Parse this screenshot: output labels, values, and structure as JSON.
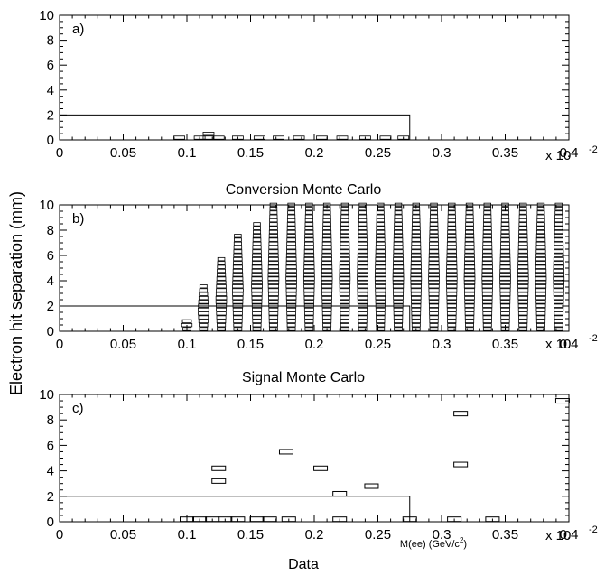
{
  "figure": {
    "ylabel": "Electron hit separation (mm)",
    "x_multiplier": "x 10",
    "x_multiplier_exp": "-2",
    "xlabel_panel_c": "M(ee) (GeV/c",
    "xlabel_panel_c_sup": "2",
    "xlabel_panel_c_end": ")"
  },
  "chart_data": [
    {
      "type": "scatter",
      "style": "box",
      "panel_label": "a)",
      "caption": "Conversion Monte Carlo",
      "xlim": [
        0,
        0.4
      ],
      "ylim": [
        0,
        10
      ],
      "x_ticks": [
        0,
        0.05,
        0.1,
        0.15,
        0.2,
        0.25,
        0.3,
        0.35,
        0.4
      ],
      "x_tick_labels": [
        "0",
        "0.05",
        "0.1",
        "0.15",
        "0.2",
        "0.25",
        "0.3",
        "0.35",
        "0.4"
      ],
      "y_ticks": [
        0,
        2,
        4,
        6,
        8,
        10
      ],
      "y_tick_labels": [
        "0",
        "2",
        "4",
        "6",
        "8",
        "10"
      ],
      "cut_box": {
        "x_max": 0.275,
        "y_max": 2
      },
      "columns": [
        {
          "x": 0.094,
          "y_max": 0.3
        },
        {
          "x": 0.11,
          "y_max": 0.4
        },
        {
          "x": 0.117,
          "y_max": 0.5
        },
        {
          "x": 0.125,
          "y_max": 0.3
        },
        {
          "x": 0.14,
          "y_max": 0.3
        },
        {
          "x": 0.157,
          "y_max": 0.3
        },
        {
          "x": 0.172,
          "y_max": 0.3
        },
        {
          "x": 0.188,
          "y_max": 0.3
        },
        {
          "x": 0.206,
          "y_max": 0.3
        },
        {
          "x": 0.222,
          "y_max": 0.3
        },
        {
          "x": 0.24,
          "y_max": 0.3
        },
        {
          "x": 0.256,
          "y_max": 0.3
        },
        {
          "x": 0.27,
          "y_max": 0.3
        }
      ]
    },
    {
      "type": "scatter",
      "style": "box",
      "panel_label": "b)",
      "caption": "Signal Monte Carlo",
      "xlim": [
        0,
        0.4
      ],
      "ylim": [
        0,
        10
      ],
      "x_ticks": [
        0,
        0.05,
        0.1,
        0.15,
        0.2,
        0.25,
        0.3,
        0.35,
        0.4
      ],
      "x_tick_labels": [
        "0",
        "0.05",
        "0.1",
        "0.15",
        "0.2",
        "0.25",
        "0.3",
        "0.35",
        "0.4"
      ],
      "y_ticks": [
        0,
        2,
        4,
        6,
        8,
        10
      ],
      "y_tick_labels": [
        "0",
        "2",
        "4",
        "6",
        "8",
        "10"
      ],
      "cut_box": {
        "x_max": 0.275,
        "y_max": 2
      },
      "columns": [
        {
          "x": 0.1,
          "y_max": 0.8
        },
        {
          "x": 0.113,
          "y_max": 3.8
        },
        {
          "x": 0.127,
          "y_max": 5.8
        },
        {
          "x": 0.14,
          "y_max": 7.6
        },
        {
          "x": 0.155,
          "y_max": 8.6
        },
        {
          "x": 0.168,
          "y_max": 10
        },
        {
          "x": 0.182,
          "y_max": 10
        },
        {
          "x": 0.196,
          "y_max": 10
        },
        {
          "x": 0.21,
          "y_max": 10
        },
        {
          "x": 0.224,
          "y_max": 10
        },
        {
          "x": 0.238,
          "y_max": 10
        },
        {
          "x": 0.252,
          "y_max": 10
        },
        {
          "x": 0.266,
          "y_max": 10
        },
        {
          "x": 0.28,
          "y_max": 10
        },
        {
          "x": 0.294,
          "y_max": 10
        },
        {
          "x": 0.308,
          "y_max": 10
        },
        {
          "x": 0.322,
          "y_max": 10
        },
        {
          "x": 0.336,
          "y_max": 10
        },
        {
          "x": 0.35,
          "y_max": 10
        },
        {
          "x": 0.364,
          "y_max": 10
        },
        {
          "x": 0.378,
          "y_max": 10
        },
        {
          "x": 0.392,
          "y_max": 10
        }
      ]
    },
    {
      "type": "scatter",
      "style": "box",
      "panel_label": "c)",
      "caption": "Data",
      "xlim": [
        0,
        0.4
      ],
      "ylim": [
        0,
        10
      ],
      "x_ticks": [
        0,
        0.05,
        0.1,
        0.15,
        0.2,
        0.25,
        0.3,
        0.35,
        0.4
      ],
      "x_tick_labels": [
        "0",
        "0.05",
        "0.1",
        "0.15",
        "0.2",
        "0.25",
        "0.3",
        "0.35",
        "0.4"
      ],
      "y_ticks": [
        0,
        2,
        4,
        6,
        8,
        10
      ],
      "y_tick_labels": [
        "0",
        "2",
        "4",
        "6",
        "8",
        "10"
      ],
      "cut_box": {
        "x_max": 0.275,
        "y_max": 2
      },
      "points": [
        {
          "x": 0.1,
          "y": 0.2
        },
        {
          "x": 0.11,
          "y": 0.2
        },
        {
          "x": 0.12,
          "y": 0.2
        },
        {
          "x": 0.13,
          "y": 0.2
        },
        {
          "x": 0.14,
          "y": 0.2
        },
        {
          "x": 0.155,
          "y": 0.2
        },
        {
          "x": 0.165,
          "y": 0.2
        },
        {
          "x": 0.18,
          "y": 0.2
        },
        {
          "x": 0.22,
          "y": 0.2
        },
        {
          "x": 0.275,
          "y": 0.2
        },
        {
          "x": 0.31,
          "y": 0.2
        },
        {
          "x": 0.34,
          "y": 0.2
        },
        {
          "x": 0.125,
          "y": 4.2
        },
        {
          "x": 0.125,
          "y": 3.2
        },
        {
          "x": 0.178,
          "y": 5.5
        },
        {
          "x": 0.205,
          "y": 4.2
        },
        {
          "x": 0.22,
          "y": 2.2
        },
        {
          "x": 0.245,
          "y": 2.8
        },
        {
          "x": 0.315,
          "y": 8.5
        },
        {
          "x": 0.315,
          "y": 4.5
        },
        {
          "x": 0.395,
          "y": 9.5
        }
      ]
    }
  ]
}
